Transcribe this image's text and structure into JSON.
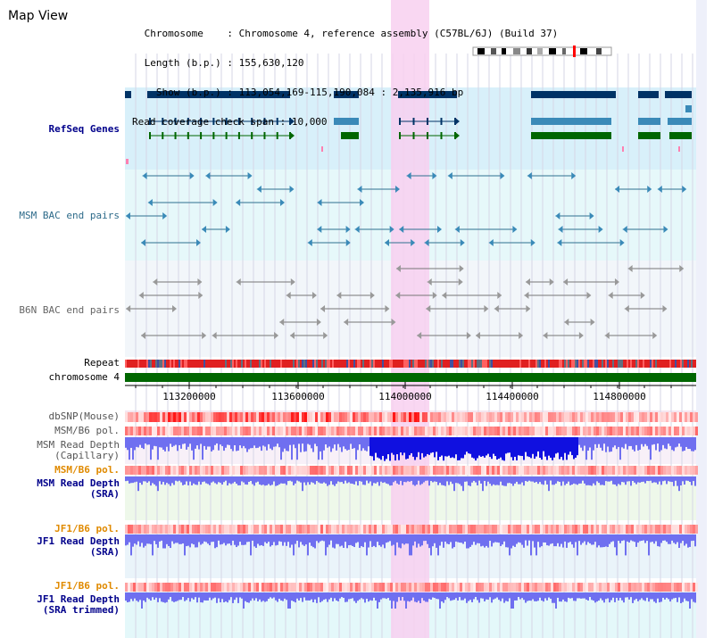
{
  "title": "Map View",
  "header": {
    "chromosome_label": " Chromosome    ",
    "chromosome_value": ": Chromosome 4, reference assembly (C57BL/6J) (Build 37)",
    "length_label": " Length (b.p.) ",
    "length_value": ": 155,630,120",
    "show_label": "   Show (b.p.) ",
    "show_value": ": 113,054,169-115,190,084 : 2,135,916 bp",
    "span_label": "Read coverage check span",
    "span_value": " : 10,000"
  },
  "tracks": {
    "refseq": "RefSeq Genes",
    "msm_bac": "MSM BAC end pairs",
    "b6n_bac": "B6N BAC end pairs",
    "repeat": "Repeat",
    "chromosome": "chromosome 4",
    "dbsnp": "dbSNP(Mouse)",
    "msm_b6_pol_1": "MSM/B6 pol.",
    "msm_depth_cap": "MSM Read Depth",
    "msm_depth_cap_sub": "(Capillary)",
    "msm_b6_pol_2": "MSM/B6 pol.",
    "msm_depth_sra": "MSM Read Depth",
    "msm_depth_sra_sub": "(SRA)",
    "jf1_b6_pol_1": "JF1/B6 pol.",
    "jf1_depth_sra": "JF1 Read Depth",
    "jf1_depth_sra_sub": "(SRA)",
    "jf1_b6_pol_2": "JF1/B6 pol.",
    "jf1_depth_trim": "JF1 Read Depth",
    "jf1_depth_trim_sub": "(SRA trimmed)"
  },
  "axis": {
    "ticks": [
      113200000,
      113600000,
      114000000,
      114400000,
      114800000
    ],
    "tick_labels": [
      "113200000",
      "113600000",
      "114000000",
      "114400000",
      "114800000"
    ],
    "range": [
      113054169,
      115190084
    ]
  },
  "colors": {
    "refseq_dark": "#003366",
    "refseq_mid": "#3a8ab8",
    "refseq_green": "#006600",
    "refseq_bg": "#d8f0fa",
    "msm_bg": "#e6f8fa",
    "b6n_bg": "#f2f6fa",
    "highlight": "#f8d0f0",
    "chromosome": "#006600",
    "depth_blue": "#6f6ff0",
    "depth_strong": "#1010e0"
  }
}
